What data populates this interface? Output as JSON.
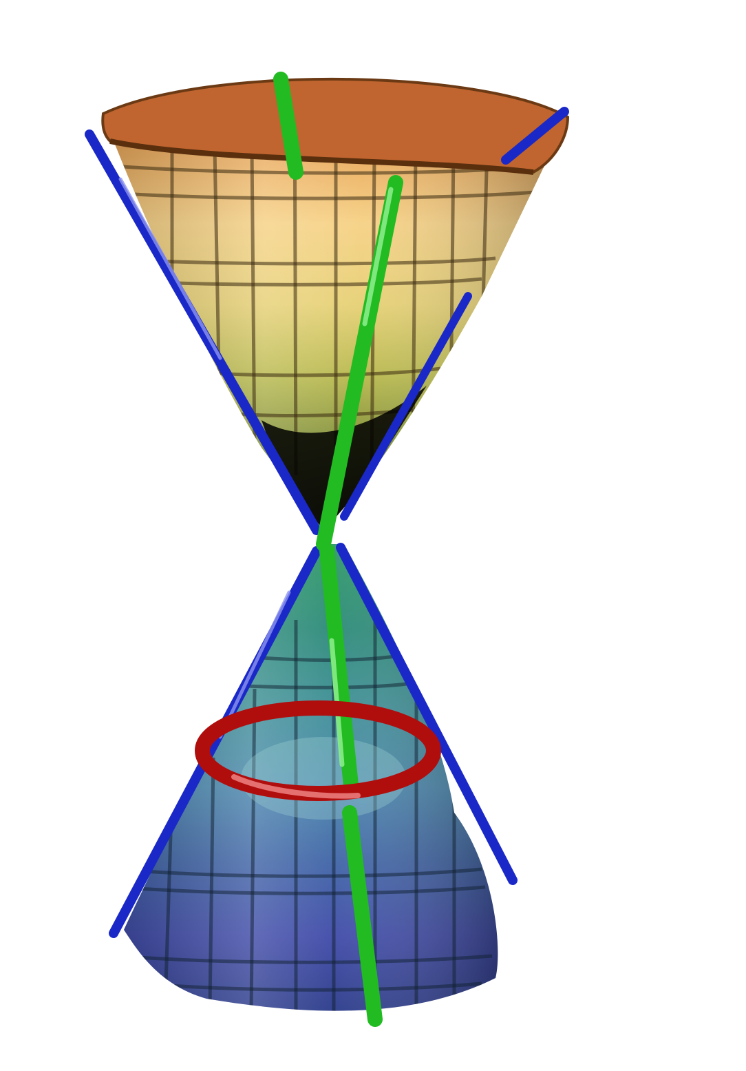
{
  "figure": {
    "kind": "double-cone surface illustration",
    "background": "#ffffff",
    "upper_cone": {
      "colors": [
        "#c0652f",
        "#e9a85a",
        "#f6d184",
        "#e6d074",
        "#b7b84c",
        "#7a8a34",
        "#3c4a1c"
      ]
    },
    "lower_cone": {
      "colors": [
        "#2e9a66",
        "#2b8a78",
        "#3f8f98",
        "#4a87ad",
        "#3f64a6",
        "#3f4aa8",
        "#2a3a8a"
      ]
    },
    "generator_lines": {
      "color": "#1a28c8"
    },
    "axis_line": {
      "color": "#22bb22"
    },
    "ring": {
      "color": "#b00d0d"
    }
  }
}
